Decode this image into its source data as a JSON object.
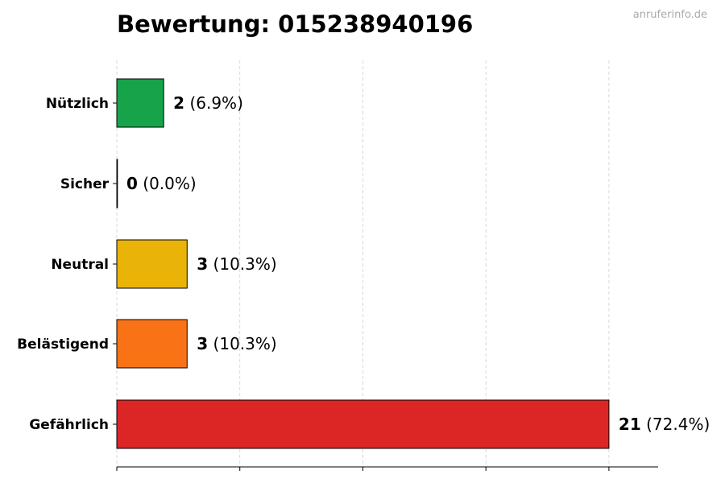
{
  "watermark": "anruferinfo.de",
  "chart_data": {
    "type": "bar",
    "orientation": "horizontal",
    "title": "Bewertung: 015238940196",
    "xlabel": "",
    "ylabel": "",
    "categories": [
      "Nützlich",
      "Sicher",
      "Neutral",
      "Belästigend",
      "Gefährlich"
    ],
    "values": [
      2,
      0,
      3,
      3,
      21
    ],
    "value_labels": [
      "(6.9%)",
      "(0.0%)",
      "(10.3%)",
      "(10.3%)",
      "(72.4%)"
    ],
    "colors": [
      "#16a34a",
      "#16a34a",
      "#eab308",
      "#f97316",
      "#dc2626"
    ],
    "xlim": [
      0,
      23.1
    ],
    "grid": "vertical dashed",
    "x_tick_labels_shown": false
  }
}
